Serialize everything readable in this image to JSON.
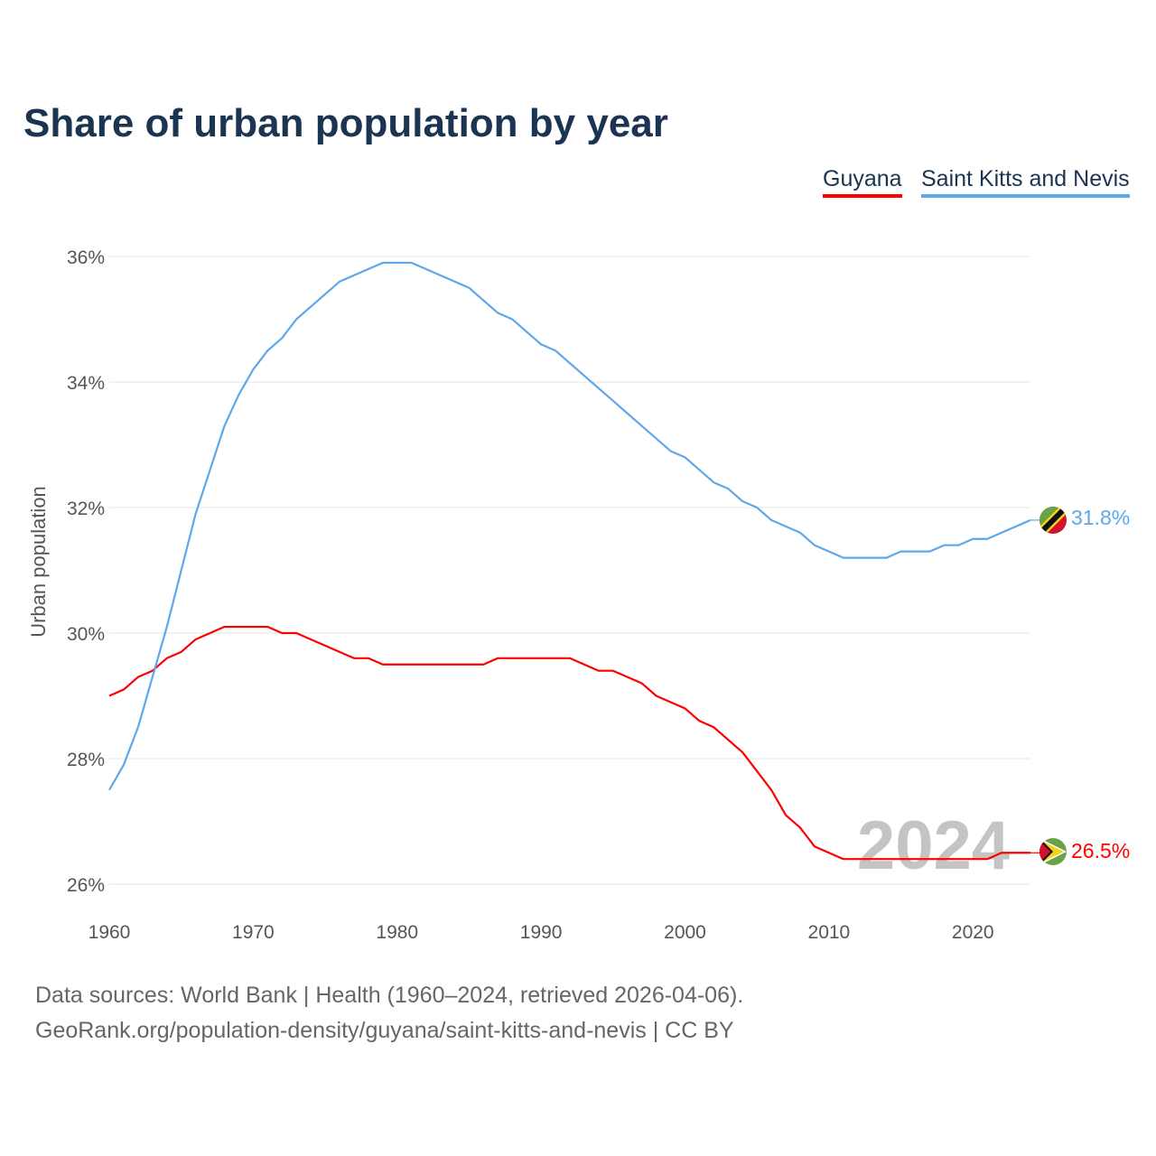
{
  "chart_data": {
    "type": "line",
    "title": "Share of urban population by year",
    "xlabel": "",
    "ylabel": "Urban population",
    "xlim": [
      1960,
      2024
    ],
    "ylim": [
      26,
      36
    ],
    "grid": true,
    "legend_position": "top-right",
    "x_ticks": [
      "1960",
      "1970",
      "1980",
      "1990",
      "2000",
      "2010",
      "2020"
    ],
    "y_ticks": [
      "26%",
      "28%",
      "30%",
      "32%",
      "34%",
      "36%"
    ],
    "y_tick_values": [
      26,
      28,
      30,
      32,
      34,
      36
    ],
    "x_tick_values": [
      1960,
      1970,
      1980,
      1990,
      2000,
      2010,
      2020
    ],
    "watermark_year": "2024",
    "series": [
      {
        "name": "Guyana",
        "color": "#ff0000",
        "end_label": "26.5%",
        "x_start": 1960,
        "values": [
          29.0,
          29.1,
          29.3,
          29.4,
          29.6,
          29.7,
          29.9,
          30.0,
          30.1,
          30.1,
          30.1,
          30.1,
          30.0,
          30.0,
          29.9,
          29.8,
          29.7,
          29.6,
          29.6,
          29.5,
          29.5,
          29.5,
          29.5,
          29.5,
          29.5,
          29.5,
          29.5,
          29.6,
          29.6,
          29.6,
          29.6,
          29.6,
          29.6,
          29.5,
          29.4,
          29.4,
          29.3,
          29.2,
          29.0,
          28.9,
          28.8,
          28.6,
          28.5,
          28.3,
          28.1,
          27.8,
          27.5,
          27.1,
          26.9,
          26.6,
          26.5,
          26.4,
          26.4,
          26.4,
          26.4,
          26.4,
          26.4,
          26.4,
          26.4,
          26.4,
          26.4,
          26.4,
          26.5,
          26.5,
          26.5
        ]
      },
      {
        "name": "Saint Kitts and Nevis",
        "color": "#5ea7ea",
        "end_label": "31.8%",
        "x_start": 1960,
        "values": [
          27.5,
          27.9,
          28.5,
          29.3,
          30.1,
          31.0,
          31.9,
          32.6,
          33.3,
          33.8,
          34.2,
          34.5,
          34.7,
          35.0,
          35.2,
          35.4,
          35.6,
          35.7,
          35.8,
          35.9,
          35.9,
          35.9,
          35.8,
          35.7,
          35.6,
          35.5,
          35.3,
          35.1,
          35.0,
          34.8,
          34.6,
          34.5,
          34.3,
          34.1,
          33.9,
          33.7,
          33.5,
          33.3,
          33.1,
          32.9,
          32.8,
          32.6,
          32.4,
          32.3,
          32.1,
          32.0,
          31.8,
          31.7,
          31.6,
          31.4,
          31.3,
          31.2,
          31.2,
          31.2,
          31.2,
          31.3,
          31.3,
          31.3,
          31.4,
          31.4,
          31.5,
          31.5,
          31.6,
          31.7,
          31.8
        ]
      }
    ]
  },
  "legend": {
    "guyana": "Guyana",
    "skn": "Saint Kitts and Nevis"
  },
  "footer": {
    "line1": "Data sources: World Bank | Health (1960–2024, retrieved 2026-04-06).",
    "line2": "GeoRank.org/population-density/guyana/saint-kitts-and-nevis | CC BY"
  }
}
